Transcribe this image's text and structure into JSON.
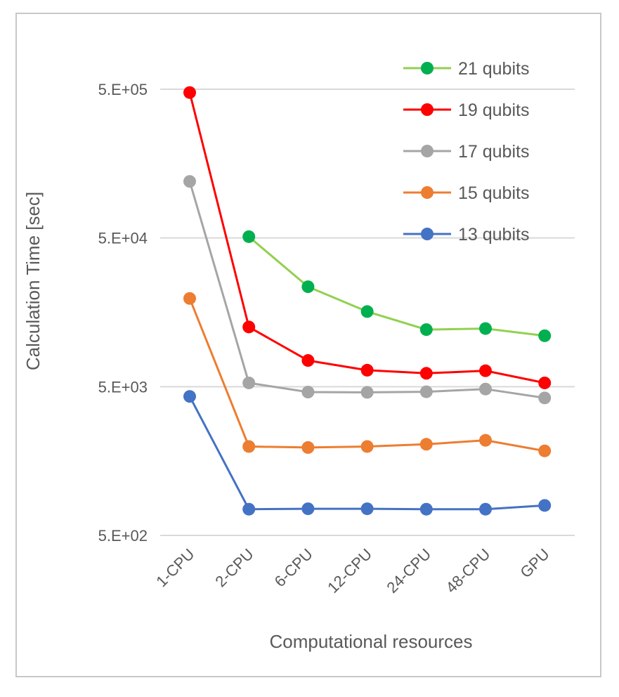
{
  "chart_data": {
    "type": "line",
    "title": "",
    "xlabel": "Computational resources",
    "ylabel": "Calculation Time [sec]",
    "y_scale": "log",
    "ylim": [
      500,
      1000000
    ],
    "y_ticks": [
      500,
      5000,
      50000,
      500000
    ],
    "y_tick_labels": [
      "5.E+02",
      "5.E+03",
      "5.E+04",
      "5.E+05"
    ],
    "grid": true,
    "legend_position": "top-right",
    "categories": [
      "1-CPU",
      "2-CPU",
      "6-CPU",
      "12-CPU",
      "24-CPU",
      "48-CPU",
      "GPU"
    ],
    "series": [
      {
        "name": "21 qubits",
        "color": "#00b050",
        "line_color": "#92d050",
        "values": [
          null,
          51000,
          23500,
          16000,
          12100,
          12300,
          11000
        ]
      },
      {
        "name": "19 qubits",
        "color": "#ff0000",
        "line_color": "#ff0000",
        "values": [
          475000,
          12600,
          7500,
          6450,
          6150,
          6400,
          5300
        ]
      },
      {
        "name": "17 qubits",
        "color": "#a5a5a5",
        "line_color": "#a5a5a5",
        "values": [
          120000,
          5300,
          4600,
          4580,
          4620,
          4820,
          4200
        ]
      },
      {
        "name": "15 qubits",
        "color": "#ed7d31",
        "line_color": "#ed7d31",
        "values": [
          19600,
          1980,
          1950,
          1980,
          2050,
          2180,
          1850
        ]
      },
      {
        "name": "13 qubits",
        "color": "#4472c4",
        "line_color": "#4472c4",
        "values": [
          4300,
          750,
          755,
          755,
          750,
          750,
          795
        ]
      }
    ]
  }
}
